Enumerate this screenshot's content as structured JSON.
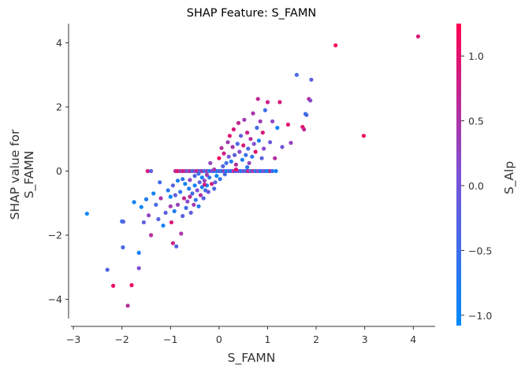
{
  "chart_data": {
    "type": "scatter",
    "title": "SHAP Feature: S_FAMN",
    "xlabel": "S_FAMN",
    "ylabel_lines": [
      "SHAP value for",
      "S_FAMN"
    ],
    "xlim": [
      -3.05,
      4.45
    ],
    "ylim": [
      -4.6,
      4.6
    ],
    "xticks": [
      -3,
      -2,
      -1,
      0,
      1,
      2,
      3,
      4
    ],
    "xtick_labels": [
      "−3",
      "−2",
      "−1",
      "0",
      "1",
      "2",
      "3",
      "4"
    ],
    "yticks": [
      -4,
      -2,
      0,
      2,
      4
    ],
    "ytick_labels": [
      "−4",
      "−2",
      "0",
      "2",
      "4"
    ],
    "grid": false,
    "colorbar": {
      "label": "S_Alp",
      "range": [
        -1.08,
        1.25
      ],
      "ticks": [
        -1.0,
        -0.5,
        0.0,
        0.5,
        1.0
      ],
      "tick_labels": [
        "−1.0",
        "−0.5",
        "0.0",
        "0.5",
        "1.0"
      ],
      "color_low": "#008afb",
      "color_mid": "#7c52d6",
      "color_high": "#ff0052"
    },
    "points": [
      {
        "x": -2.72,
        "y": -1.33,
        "c": -1.0
      },
      {
        "x": -2.3,
        "y": -3.08,
        "c": -0.3
      },
      {
        "x": -2.18,
        "y": -3.58,
        "c": 1.1
      },
      {
        "x": -2.0,
        "y": -1.57,
        "c": -0.6
      },
      {
        "x": -1.97,
        "y": -1.58,
        "c": -0.3
      },
      {
        "x": -1.98,
        "y": -2.38,
        "c": -0.4
      },
      {
        "x": -1.88,
        "y": -4.2,
        "c": 0.6
      },
      {
        "x": -1.8,
        "y": -3.56,
        "c": 1.1
      },
      {
        "x": -1.75,
        "y": -0.97,
        "c": -0.9
      },
      {
        "x": -1.65,
        "y": -2.55,
        "c": -0.9
      },
      {
        "x": -1.65,
        "y": -3.03,
        "c": 0.1
      },
      {
        "x": -1.6,
        "y": -1.12,
        "c": -1.0
      },
      {
        "x": -1.55,
        "y": -1.6,
        "c": -0.2
      },
      {
        "x": -1.5,
        "y": -0.88,
        "c": -0.8
      },
      {
        "x": -1.45,
        "y": -1.38,
        "c": 0.3
      },
      {
        "x": -1.4,
        "y": -2.0,
        "c": 0.6
      },
      {
        "x": -1.35,
        "y": -0.7,
        "c": -0.9
      },
      {
        "x": -1.3,
        "y": -1.05,
        "c": -0.4
      },
      {
        "x": -1.25,
        "y": -1.5,
        "c": -0.3
      },
      {
        "x": -1.2,
        "y": -0.85,
        "c": 0.5
      },
      {
        "x": -1.15,
        "y": -1.7,
        "c": -0.9
      },
      {
        "x": -1.1,
        "y": -1.3,
        "c": -0.2
      },
      {
        "x": -1.05,
        "y": -0.6,
        "c": -0.7
      },
      {
        "x": -1.0,
        "y": -1.1,
        "c": 0.4
      },
      {
        "x": -0.98,
        "y": -1.6,
        "c": 0.9
      },
      {
        "x": -0.95,
        "y": -2.25,
        "c": 0.8
      },
      {
        "x": -0.92,
        "y": -1.25,
        "c": -0.8
      },
      {
        "x": -0.9,
        "y": -0.75,
        "c": -0.1
      },
      {
        "x": -0.88,
        "y": -2.35,
        "c": -0.3
      },
      {
        "x": -0.85,
        "y": -1.05,
        "c": 0.3
      },
      {
        "x": -0.8,
        "y": -0.65,
        "c": -0.6
      },
      {
        "x": -0.78,
        "y": -1.95,
        "c": 0.5
      },
      {
        "x": -0.75,
        "y": -1.4,
        "c": -0.2
      },
      {
        "x": -0.72,
        "y": -0.85,
        "c": 0.7
      },
      {
        "x": -0.7,
        "y": -0.4,
        "c": -0.9
      },
      {
        "x": -0.68,
        "y": -1.15,
        "c": -0.5
      },
      {
        "x": -0.65,
        "y": -0.95,
        "c": 0.2
      },
      {
        "x": -0.62,
        "y": -0.55,
        "c": -0.8
      },
      {
        "x": -0.6,
        "y": -0.8,
        "c": 0.6
      },
      {
        "x": -0.58,
        "y": -1.3,
        "c": -0.1
      },
      {
        "x": -0.55,
        "y": -0.7,
        "c": -0.4
      },
      {
        "x": -0.52,
        "y": -1.05,
        "c": 0.4
      },
      {
        "x": -0.5,
        "y": -0.45,
        "c": -0.9
      },
      {
        "x": -0.48,
        "y": -0.9,
        "c": -0.6
      },
      {
        "x": -0.45,
        "y": -0.6,
        "c": 0.1
      },
      {
        "x": -0.42,
        "y": -1.1,
        "c": -0.7
      },
      {
        "x": -0.4,
        "y": -0.35,
        "c": -0.2
      },
      {
        "x": -0.38,
        "y": -0.75,
        "c": 0.5
      },
      {
        "x": -0.35,
        "y": -0.5,
        "c": -0.8
      },
      {
        "x": -0.32,
        "y": -0.85,
        "c": -0.3
      },
      {
        "x": -0.3,
        "y": -0.3,
        "c": 0.3
      },
      {
        "x": -0.28,
        "y": -0.6,
        "c": -0.5
      },
      {
        "x": -0.25,
        "y": -0.45,
        "c": -0.9
      },
      {
        "x": -0.22,
        "y": -0.65,
        "c": 0.0
      },
      {
        "x": -0.2,
        "y": -0.2,
        "c": -0.6
      },
      {
        "x": -0.15,
        "y": -0.4,
        "c": 0.8
      },
      {
        "x": -0.1,
        "y": -0.55,
        "c": -0.4
      },
      {
        "x": -0.05,
        "y": -0.15,
        "c": -1.0
      },
      {
        "x": -0.5,
        "y": -0.15,
        "c": -0.3
      },
      {
        "x": -0.75,
        "y": -0.25,
        "c": -0.6
      },
      {
        "x": -1.0,
        "y": -0.8,
        "c": -1.0
      },
      {
        "x": -0.95,
        "y": -0.45,
        "c": -0.2
      },
      {
        "x": -1.22,
        "y": -0.35,
        "c": -0.5
      },
      {
        "x": -0.85,
        "y": -0.3,
        "c": -0.8
      },
      {
        "x": -0.6,
        "y": -0.28,
        "c": 0.2
      },
      {
        "x": -0.35,
        "y": -0.2,
        "c": -0.9
      },
      {
        "x": -0.25,
        "y": -0.12,
        "c": 0.4
      },
      {
        "x": -1.47,
        "y": 0.0,
        "c": 0.9
      },
      {
        "x": -1.4,
        "y": 0.0,
        "c": -0.2
      },
      {
        "x": -0.9,
        "y": 0.0,
        "c": 0.6
      },
      {
        "x": -0.85,
        "y": 0.0,
        "c": 1.1
      },
      {
        "x": -0.8,
        "y": 0.0,
        "c": 0.3
      },
      {
        "x": -0.75,
        "y": 0.0,
        "c": 0.9
      },
      {
        "x": -0.7,
        "y": 0.0,
        "c": 0.5
      },
      {
        "x": -0.65,
        "y": 0.0,
        "c": 0.0
      },
      {
        "x": -0.6,
        "y": 0.0,
        "c": 0.7
      },
      {
        "x": -0.55,
        "y": 0.0,
        "c": -0.4
      },
      {
        "x": -0.5,
        "y": 0.0,
        "c": 0.2
      },
      {
        "x": -0.45,
        "y": 0.0,
        "c": 0.8
      },
      {
        "x": -0.4,
        "y": 0.0,
        "c": -0.1
      },
      {
        "x": -0.35,
        "y": 0.0,
        "c": 0.5
      },
      {
        "x": -0.3,
        "y": 0.0,
        "c": -0.6
      },
      {
        "x": -0.25,
        "y": 0.0,
        "c": 0.3
      },
      {
        "x": -0.2,
        "y": 0.0,
        "c": -0.8
      },
      {
        "x": -0.15,
        "y": 0.0,
        "c": 0.1
      },
      {
        "x": -0.1,
        "y": 0.0,
        "c": -0.5
      },
      {
        "x": -0.05,
        "y": 0.0,
        "c": -0.9
      },
      {
        "x": 0.0,
        "y": 0.0,
        "c": -0.3
      },
      {
        "x": 0.05,
        "y": 0.0,
        "c": -0.7
      },
      {
        "x": 0.1,
        "y": 0.0,
        "c": 0.4
      },
      {
        "x": 0.15,
        "y": 0.0,
        "c": -1.0
      },
      {
        "x": 0.2,
        "y": 0.0,
        "c": -0.2
      },
      {
        "x": 0.25,
        "y": 0.0,
        "c": -0.6
      },
      {
        "x": 0.3,
        "y": 0.0,
        "c": 0.6
      },
      {
        "x": 0.35,
        "y": 0.0,
        "c": -0.4
      },
      {
        "x": 0.4,
        "y": 0.0,
        "c": 0.2
      },
      {
        "x": 0.45,
        "y": 0.0,
        "c": -0.8
      },
      {
        "x": 0.5,
        "y": 0.0,
        "c": 0.0
      },
      {
        "x": 0.55,
        "y": 0.0,
        "c": -0.5
      },
      {
        "x": 0.6,
        "y": 0.0,
        "c": 0.8
      },
      {
        "x": 0.65,
        "y": 0.0,
        "c": -0.3
      },
      {
        "x": 0.7,
        "y": 0.0,
        "c": 0.5
      },
      {
        "x": 0.75,
        "y": 0.0,
        "c": -0.7
      },
      {
        "x": 0.8,
        "y": 0.0,
        "c": 0.3
      },
      {
        "x": 0.85,
        "y": 0.0,
        "c": -0.9
      },
      {
        "x": 0.9,
        "y": 0.0,
        "c": 0.1
      },
      {
        "x": 0.95,
        "y": 0.0,
        "c": -0.4
      },
      {
        "x": 1.0,
        "y": 0.0,
        "c": -1.0
      },
      {
        "x": 1.05,
        "y": 0.0,
        "c": 0.7
      },
      {
        "x": 1.1,
        "y": 0.0,
        "c": -0.6
      },
      {
        "x": 1.17,
        "y": 0.0,
        "c": -0.9
      },
      {
        "x": -0.08,
        "y": -0.35,
        "c": -0.2
      },
      {
        "x": 0.02,
        "y": -0.25,
        "c": -0.6
      },
      {
        "x": -0.18,
        "y": 0.25,
        "c": 0.3
      },
      {
        "x": 0.0,
        "y": 0.4,
        "c": 1.1
      },
      {
        "x": 0.05,
        "y": 0.72,
        "c": 0.6
      },
      {
        "x": 0.08,
        "y": 0.15,
        "c": -0.3
      },
      {
        "x": 0.1,
        "y": 0.55,
        "c": 0.8
      },
      {
        "x": 0.15,
        "y": 0.25,
        "c": -0.5
      },
      {
        "x": 0.18,
        "y": 0.9,
        "c": 0.4
      },
      {
        "x": 0.2,
        "y": 0.45,
        "c": 0.0
      },
      {
        "x": 0.22,
        "y": 1.1,
        "c": 1.0
      },
      {
        "x": 0.25,
        "y": 0.3,
        "c": -0.7
      },
      {
        "x": 0.28,
        "y": 0.75,
        "c": 0.5
      },
      {
        "x": 0.3,
        "y": 1.3,
        "c": 0.9
      },
      {
        "x": 0.32,
        "y": 0.5,
        "c": -0.2
      },
      {
        "x": 0.35,
        "y": 0.2,
        "c": 0.6
      },
      {
        "x": 0.38,
        "y": 0.85,
        "c": -0.4
      },
      {
        "x": 0.4,
        "y": 1.5,
        "c": 0.7
      },
      {
        "x": 0.42,
        "y": 0.6,
        "c": 0.2
      },
      {
        "x": 0.45,
        "y": 1.1,
        "c": -0.1
      },
      {
        "x": 0.48,
        "y": 0.35,
        "c": -0.8
      },
      {
        "x": 0.5,
        "y": 0.8,
        "c": 0.9
      },
      {
        "x": 0.52,
        "y": 1.6,
        "c": 0.4
      },
      {
        "x": 0.55,
        "y": 0.5,
        "c": -0.5
      },
      {
        "x": 0.58,
        "y": 1.2,
        "c": 0.8
      },
      {
        "x": 0.6,
        "y": 0.7,
        "c": -0.3
      },
      {
        "x": 0.62,
        "y": 0.25,
        "c": 0.3
      },
      {
        "x": 0.65,
        "y": 1.0,
        "c": 0.6
      },
      {
        "x": 0.68,
        "y": 0.45,
        "c": -0.6
      },
      {
        "x": 0.7,
        "y": 1.8,
        "c": 0.5
      },
      {
        "x": 0.72,
        "y": 0.85,
        "c": 0.1
      },
      {
        "x": 0.75,
        "y": 0.6,
        "c": 1.0
      },
      {
        "x": 0.78,
        "y": 1.35,
        "c": -0.4
      },
      {
        "x": 0.8,
        "y": 2.25,
        "c": 0.7
      },
      {
        "x": 0.82,
        "y": 0.95,
        "c": -0.8
      },
      {
        "x": 0.85,
        "y": 1.55,
        "c": 0.4
      },
      {
        "x": 0.88,
        "y": 0.4,
        "c": -0.2
      },
      {
        "x": 0.9,
        "y": 1.2,
        "c": 0.9
      },
      {
        "x": 0.92,
        "y": 0.7,
        "c": 0.2
      },
      {
        "x": 0.95,
        "y": 1.9,
        "c": -0.5
      },
      {
        "x": 1.0,
        "y": 2.15,
        "c": 0.8
      },
      {
        "x": 1.05,
        "y": 0.9,
        "c": -0.1
      },
      {
        "x": 1.1,
        "y": 1.55,
        "c": 0.3
      },
      {
        "x": 1.15,
        "y": 0.4,
        "c": 0.6
      },
      {
        "x": 1.2,
        "y": 1.35,
        "c": -0.9
      },
      {
        "x": 1.25,
        "y": 2.15,
        "c": 0.9
      },
      {
        "x": 1.3,
        "y": 0.75,
        "c": 0.0
      },
      {
        "x": 1.42,
        "y": 1.45,
        "c": 1.0
      },
      {
        "x": 1.48,
        "y": 0.88,
        "c": 0.3
      },
      {
        "x": 1.6,
        "y": 3.0,
        "c": -0.4
      },
      {
        "x": 1.72,
        "y": 1.38,
        "c": 1.0
      },
      {
        "x": 1.75,
        "y": 1.3,
        "c": 0.7
      },
      {
        "x": 1.8,
        "y": 1.75,
        "c": -0.3
      },
      {
        "x": 1.85,
        "y": 2.25,
        "c": 0.6
      },
      {
        "x": 1.88,
        "y": 2.2,
        "c": 0.2
      },
      {
        "x": 1.9,
        "y": 2.85,
        "c": -0.2
      },
      {
        "x": 1.78,
        "y": 1.78,
        "c": -0.5
      },
      {
        "x": 2.4,
        "y": 3.92,
        "c": 1.2
      },
      {
        "x": 2.98,
        "y": 1.1,
        "c": 1.1
      },
      {
        "x": 4.1,
        "y": 4.2,
        "c": 0.9
      },
      {
        "x": -0.1,
        "y": 0.05,
        "c": 0.5
      },
      {
        "x": 0.12,
        "y": -0.1,
        "c": -0.4
      },
      {
        "x": 0.35,
        "y": 0.05,
        "c": 1.0
      },
      {
        "x": 0.58,
        "y": 0.12,
        "c": -0.7
      },
      {
        "x": -0.42,
        "y": -0.08,
        "c": -0.5
      },
      {
        "x": -0.3,
        "y": -0.42,
        "c": 0.9
      }
    ]
  }
}
